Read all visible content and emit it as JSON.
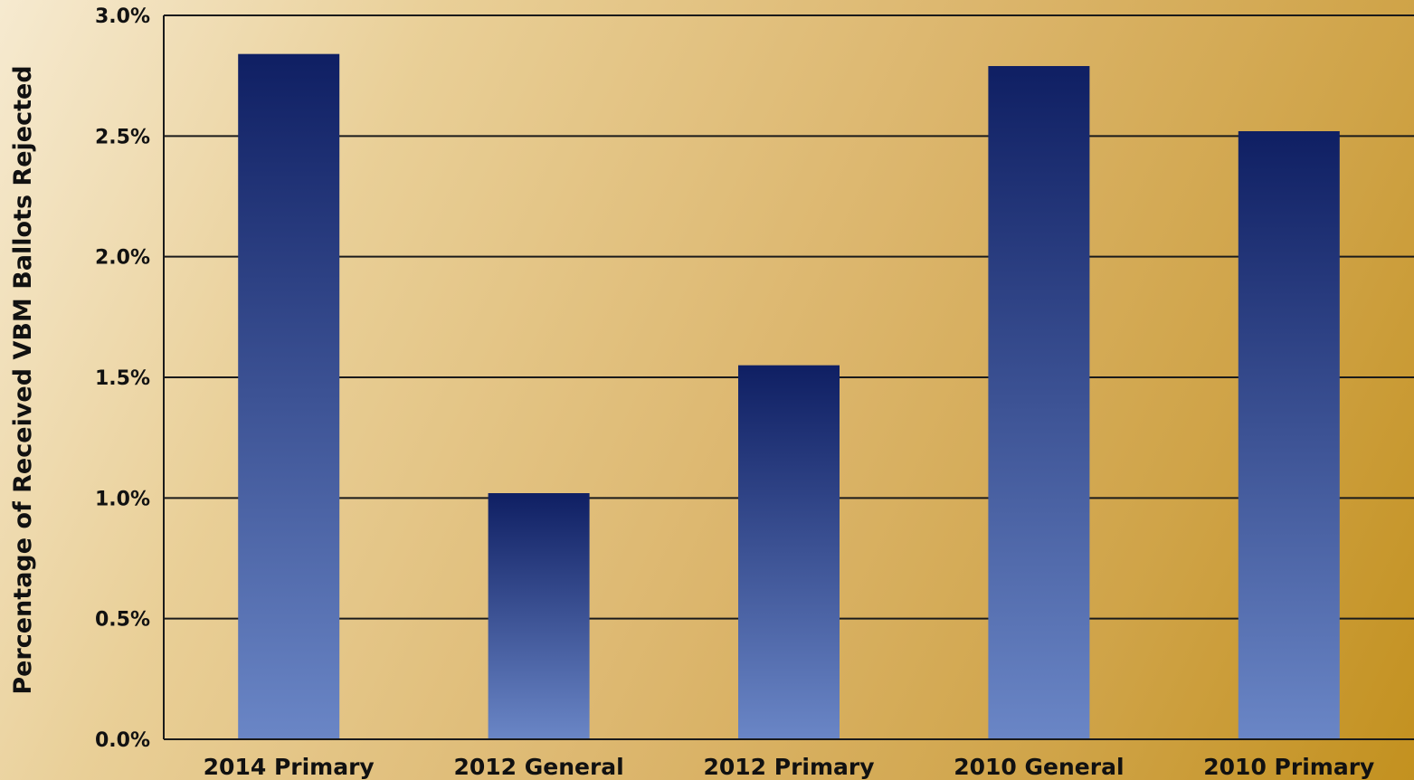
{
  "chart_data": {
    "type": "bar",
    "title": "",
    "xlabel": "",
    "ylabel": "Percentage of Received VBM Ballots Rejected",
    "categories": [
      "2014 Primary",
      "2012 General",
      "2012 Primary",
      "2010 General",
      "2010 Primary"
    ],
    "values": [
      2.84,
      1.02,
      1.55,
      2.79,
      2.52
    ],
    "value_unit": "%",
    "ylim": [
      0,
      3
    ],
    "yticks": [
      0,
      0.5,
      1,
      1.5,
      2,
      2.5,
      3
    ],
    "ytick_labels": [
      "0.0%",
      "0.5%",
      "1.0%",
      "1.5%",
      "2.0%",
      "2.5%",
      "3.0%"
    ],
    "grid": true,
    "legend": "none",
    "colors": {
      "bar_top": "#0f1f63",
      "bar_bottom": "#6a86c6",
      "grid": "#1a1a1a"
    }
  }
}
